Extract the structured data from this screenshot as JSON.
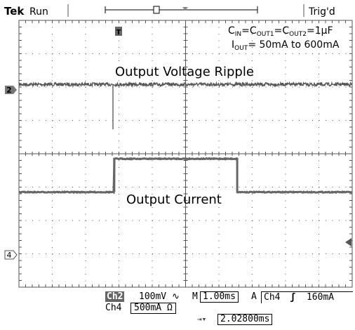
{
  "header": {
    "brand": "Tek",
    "mode": "Run",
    "status": "Trig'd"
  },
  "annotations": {
    "cap_line": {
      "pre": "C",
      "sub1": "IN",
      "mid1": "=C",
      "sub2": "OUT1",
      "mid2": "=C",
      "sub3": "OUT2",
      "post": "=1μF"
    },
    "iout_line": {
      "pre": "I",
      "sub": "OUT",
      "post": "= 50mA to 600mA"
    },
    "voltage_label": "Output Voltage Ripple",
    "current_label": "Output Current"
  },
  "markers": {
    "ch2": "2",
    "ch4": "4",
    "trigger": "T"
  },
  "readout": {
    "ch2_name": "Ch2",
    "ch2_scale": "100mV",
    "ch2_coupling": "∿",
    "ch4_name": "Ch4",
    "ch4_scale": "500mA",
    "ch4_coupling": "Ω",
    "timebase_prefix": "M",
    "timebase": "1.00ms",
    "trig_prefix": "A",
    "trig_source": "Ch4",
    "trig_slope": "ʃ",
    "trig_level": "160mA",
    "delay_icon": "⇥▾",
    "delay": "2.02800ms"
  },
  "colors": {
    "trace": "#555555",
    "grid": "#555555",
    "background": "#ffffff"
  },
  "chart_data": {
    "type": "line",
    "grid": true,
    "x_divisions": 10,
    "y_divisions": 8,
    "x_range_ms": [
      0,
      10
    ],
    "series": [
      {
        "channel": "Ch2",
        "baseline_div": 2.08,
        "noise_div": 0.05,
        "spike": {
          "x_ms": 2.82,
          "depth_div": 1.35
        }
      },
      {
        "channel": "Ch4",
        "low_div": -1.15,
        "high_div": -0.15,
        "step_up_ms": 2.86,
        "step_down_ms": 6.55
      }
    ]
  }
}
